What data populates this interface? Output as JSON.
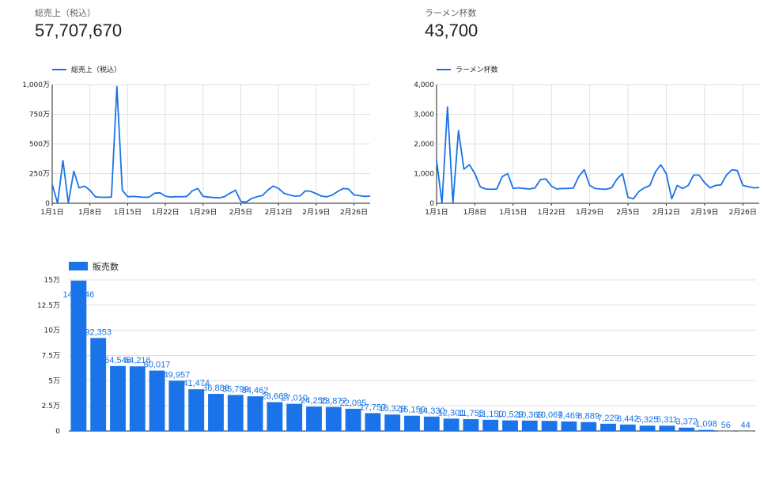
{
  "scorecards": [
    {
      "label": "総売上（税込）",
      "value": "57,707,670"
    },
    {
      "label": "ラーメン杯数",
      "value": "43,700"
    }
  ],
  "colors": {
    "series": "#1a73e8",
    "bar": "#1a73e8",
    "grid": "#e0e0e0",
    "axis": "#202124"
  },
  "chart_data": [
    {
      "type": "line",
      "legend": "総売上（税込）",
      "legend_position": "top-left",
      "ylim": [
        0,
        10000000
      ],
      "yticks": [
        {
          "v": 0,
          "label": "0"
        },
        {
          "v": 2500000,
          "label": "250万"
        },
        {
          "v": 5000000,
          "label": "500万"
        },
        {
          "v": 7500000,
          "label": "750万"
        },
        {
          "v": 10000000,
          "label": "1,000万"
        }
      ],
      "xticks": [
        {
          "i": 0,
          "label": "1月1日"
        },
        {
          "i": 7,
          "label": "1月8日"
        },
        {
          "i": 14,
          "label": "1月15日"
        },
        {
          "i": 21,
          "label": "1月22日"
        },
        {
          "i": 28,
          "label": "1月29日"
        },
        {
          "i": 35,
          "label": "2月5日"
        },
        {
          "i": 42,
          "label": "2月12日"
        },
        {
          "i": 49,
          "label": "2月19日"
        },
        {
          "i": 56,
          "label": "2月26日"
        }
      ],
      "values": [
        1600000,
        0,
        3600000,
        0,
        2700000,
        1300000,
        1450000,
        1100000,
        550000,
        500000,
        500000,
        520000,
        9850000,
        1100000,
        550000,
        570000,
        540000,
        500000,
        520000,
        850000,
        880000,
        600000,
        520000,
        560000,
        540000,
        580000,
        1050000,
        1250000,
        580000,
        520000,
        480000,
        450000,
        560000,
        850000,
        1100000,
        150000,
        100000,
        400000,
        550000,
        650000,
        1100000,
        1450000,
        1250000,
        850000,
        700000,
        600000,
        620000,
        1050000,
        1000000,
        800000,
        600000,
        550000,
        700000,
        1000000,
        1250000,
        1200000,
        700000,
        640000,
        580000,
        600000
      ]
    },
    {
      "type": "line",
      "legend": "ラーメン杯数",
      "legend_position": "top-left",
      "ylim": [
        0,
        4000
      ],
      "yticks": [
        {
          "v": 0,
          "label": "0"
        },
        {
          "v": 1000,
          "label": "1,000"
        },
        {
          "v": 2000,
          "label": "2,000"
        },
        {
          "v": 3000,
          "label": "3,000"
        },
        {
          "v": 4000,
          "label": "4,000"
        }
      ],
      "xticks": [
        {
          "i": 0,
          "label": "1月1日"
        },
        {
          "i": 7,
          "label": "1月8日"
        },
        {
          "i": 14,
          "label": "1月15日"
        },
        {
          "i": 21,
          "label": "1月22日"
        },
        {
          "i": 28,
          "label": "1月29日"
        },
        {
          "i": 35,
          "label": "2月5日"
        },
        {
          "i": 42,
          "label": "2月12日"
        },
        {
          "i": 49,
          "label": "2月19日"
        },
        {
          "i": 56,
          "label": "2月26日"
        }
      ],
      "values": [
        1450,
        0,
        3250,
        0,
        2450,
        1150,
        1300,
        1000,
        550,
        480,
        470,
        480,
        900,
        1000,
        500,
        520,
        500,
        480,
        520,
        800,
        820,
        580,
        480,
        500,
        500,
        510,
        900,
        1130,
        600,
        500,
        480,
        470,
        520,
        820,
        1000,
        200,
        150,
        400,
        520,
        600,
        1050,
        1300,
        1000,
        150,
        600,
        500,
        600,
        950,
        950,
        700,
        520,
        600,
        620,
        950,
        1130,
        1100,
        600,
        560,
        520,
        530
      ]
    },
    {
      "type": "bar",
      "legend": "販売数",
      "legend_position": "top-left",
      "ylim": [
        0,
        150000
      ],
      "yticks": [
        {
          "v": 0,
          "label": "0"
        },
        {
          "v": 25000,
          "label": "2.5万"
        },
        {
          "v": 50000,
          "label": "5万"
        },
        {
          "v": 75000,
          "label": "7.5万"
        },
        {
          "v": 100000,
          "label": "10万"
        },
        {
          "v": 125000,
          "label": "12.5万"
        },
        {
          "v": 150000,
          "label": "15万"
        }
      ],
      "values": [
        149346,
        92353,
        64546,
        64216,
        60017,
        49957,
        41474,
        36886,
        35799,
        34462,
        28663,
        27010,
        24255,
        23877,
        22095,
        17757,
        16329,
        15159,
        14330,
        12301,
        11755,
        11150,
        10529,
        10369,
        10067,
        9469,
        8889,
        7229,
        6442,
        5325,
        5311,
        3372,
        1098,
        56,
        44
      ],
      "data_labels": [
        "149,346",
        "92,353",
        "64,546",
        "64,216",
        "60,017",
        "49,957",
        "41,474",
        "36,886",
        "35,799",
        "34,462",
        "28,663",
        "27,010",
        "24,255",
        "23,877",
        "22,095",
        "17,757",
        "16,329",
        "15,159",
        "14,330",
        "12,301",
        "11,755",
        "11,150",
        "10,529",
        "10,369",
        "10,067",
        "9,469",
        "8,889",
        "7,229",
        "6,442",
        "5,325",
        "5,311",
        "3,372",
        "1,098",
        "56",
        "44"
      ]
    }
  ]
}
